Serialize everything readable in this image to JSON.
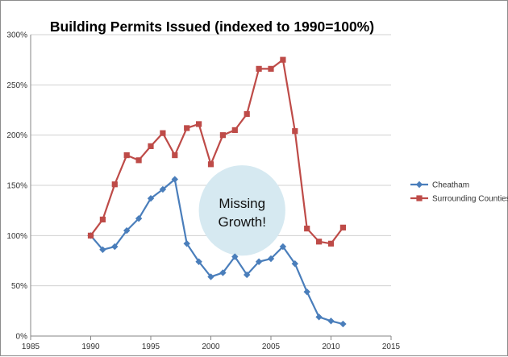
{
  "chart_data": {
    "type": "line",
    "title": "Building Permits Issued (indexed to 1990=100%)",
    "xlim": [
      1985,
      2015
    ],
    "ylim": [
      0,
      300
    ],
    "x_ticks": [
      1985,
      1990,
      1995,
      2000,
      2005,
      2010,
      2015
    ],
    "y_ticks": [
      0,
      50,
      100,
      150,
      200,
      250,
      300
    ],
    "y_tick_labels": [
      "0%",
      "50%",
      "100%",
      "150%",
      "200%",
      "250%",
      "300%"
    ],
    "grid": "horizontal",
    "legend_position": "right",
    "x": [
      1990,
      1991,
      1992,
      1993,
      1994,
      1995,
      1996,
      1997,
      1998,
      1999,
      2000,
      2001,
      2002,
      2003,
      2004,
      2005,
      2006,
      2007,
      2008,
      2009,
      2010,
      2011
    ],
    "series": [
      {
        "name": "Cheatham",
        "color": "#4a7ebb",
        "marker": "diamond",
        "values": [
          100,
          86,
          89,
          105,
          117,
          137,
          146,
          156,
          92,
          74,
          59,
          63,
          79,
          61,
          74,
          77,
          89,
          72,
          44,
          19,
          15,
          12
        ]
      },
      {
        "name": "Surrounding Counties",
        "color": "#be4b48",
        "marker": "square",
        "values": [
          100,
          116,
          151,
          180,
          175,
          189,
          202,
          180,
          207,
          211,
          171,
          200,
          205,
          221,
          266,
          266,
          275,
          204,
          107,
          94,
          92,
          108
        ]
      }
    ],
    "annotation": {
      "text_line1": "Missing",
      "text_line2": "Growth!",
      "center_x": 2002.6,
      "center_y": 125,
      "radius_x_years": 3.6,
      "radius_y_percent": 45,
      "fill": "#d6e9f1"
    }
  }
}
